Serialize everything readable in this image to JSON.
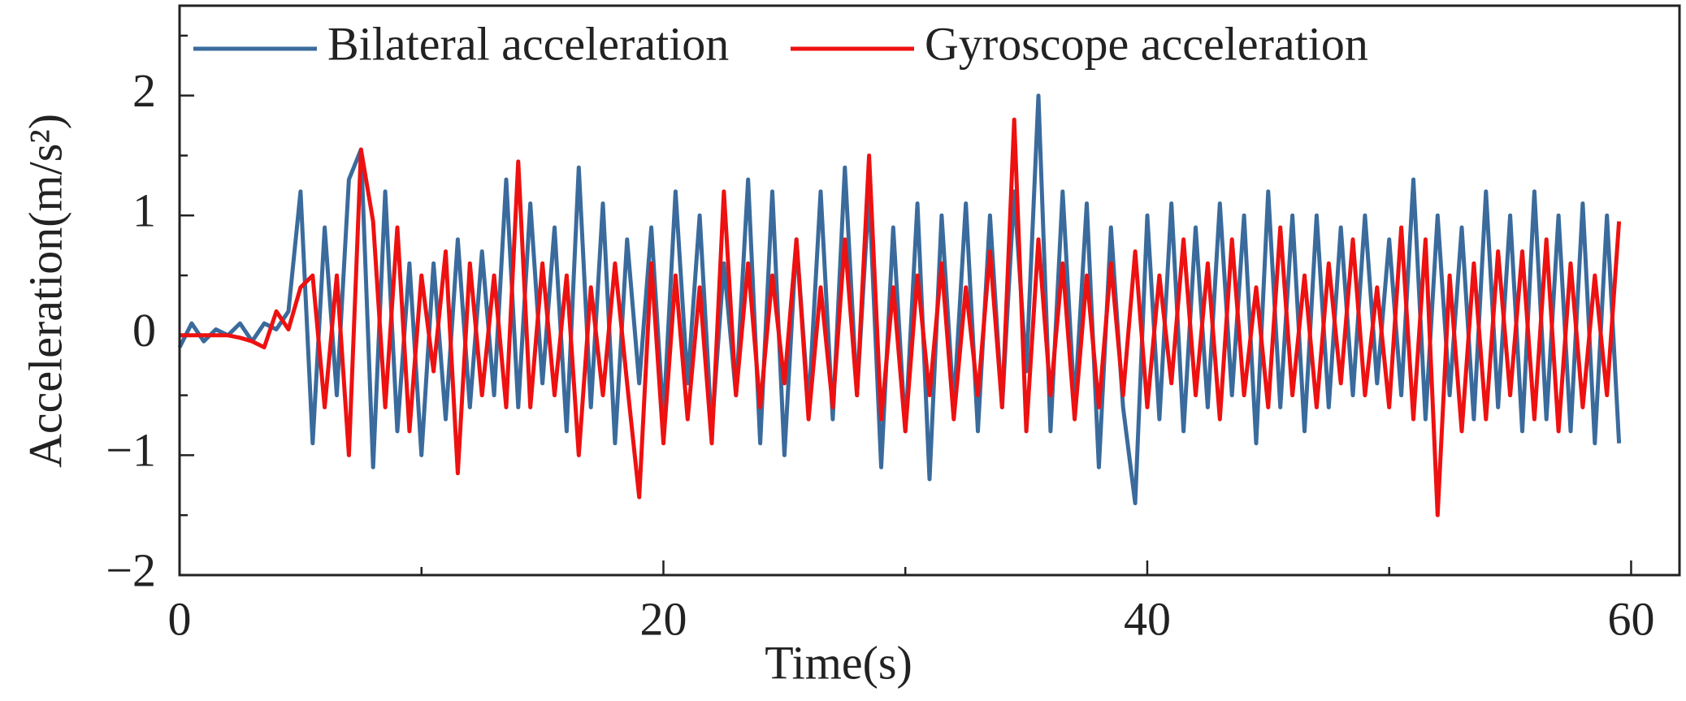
{
  "chart_data": {
    "type": "line",
    "xlabel": "Time(s)",
    "ylabel": "Acceleration(m/s²)",
    "x": [
      0,
      0.5,
      1,
      1.5,
      2,
      2.5,
      3,
      3.5,
      4,
      4.5,
      5,
      5.5,
      6,
      6.5,
      7,
      7.5,
      8,
      8.5,
      9,
      9.5,
      10,
      10.5,
      11,
      11.5,
      12,
      12.5,
      13,
      13.5,
      14,
      14.5,
      15,
      15.5,
      16,
      16.5,
      17,
      17.5,
      18,
      18.5,
      19,
      19.5,
      20,
      20.5,
      21,
      21.5,
      22,
      22.5,
      23,
      23.5,
      24,
      24.5,
      25,
      25.5,
      26,
      26.5,
      27,
      27.5,
      28,
      28.5,
      29,
      29.5,
      30,
      30.5,
      31,
      31.5,
      32,
      32.5,
      33,
      33.5,
      34,
      34.5,
      35,
      35.5,
      36,
      36.5,
      37,
      37.5,
      38,
      38.5,
      39,
      39.5,
      40,
      40.5,
      41,
      41.5,
      42,
      42.5,
      43,
      43.5,
      44,
      44.5,
      45,
      45.5,
      46,
      46.5,
      47,
      47.5,
      48,
      48.5,
      49,
      49.5,
      50,
      50.5,
      51,
      51.5,
      52,
      52.5,
      53,
      53.5,
      54,
      54.5,
      55,
      55.5,
      56,
      56.5,
      57,
      57.5,
      58,
      58.5,
      59,
      59.5
    ],
    "series": [
      {
        "name": "Bilateral acceleration",
        "color": "#3a6b9c",
        "values": [
          -0.1,
          0.1,
          -0.05,
          0.05,
          0,
          0.1,
          -0.05,
          0.1,
          0.05,
          0.2,
          1.2,
          -0.9,
          0.9,
          -0.5,
          1.3,
          1.55,
          -1.1,
          1.2,
          -0.8,
          0.6,
          -1.0,
          0.6,
          -0.7,
          0.8,
          -0.6,
          0.7,
          -0.5,
          1.3,
          -0.6,
          1.1,
          -0.4,
          0.9,
          -0.8,
          1.4,
          -0.6,
          1.1,
          -0.9,
          0.8,
          -0.4,
          0.9,
          -0.7,
          1.2,
          -0.4,
          1.0,
          -0.8,
          0.6,
          -0.5,
          1.3,
          -0.9,
          1.2,
          -1.0,
          0.8,
          -0.6,
          1.2,
          -0.7,
          1.4,
          -0.5,
          1.2,
          -1.1,
          0.9,
          -0.8,
          1.1,
          -1.2,
          1.0,
          -0.6,
          1.1,
          -0.8,
          1.0,
          -0.6,
          1.2,
          -0.3,
          2.0,
          -0.8,
          1.2,
          -0.6,
          1.1,
          -1.1,
          0.9,
          -0.6,
          -1.4,
          1.0,
          -0.7,
          1.1,
          -0.8,
          0.9,
          -0.6,
          1.1,
          -0.5,
          1.0,
          -0.9,
          1.2,
          -0.6,
          1.0,
          -0.8,
          1.0,
          -0.6,
          0.9,
          -0.5,
          1.0,
          -0.4,
          0.8,
          -0.5,
          1.3,
          -0.7,
          1.0,
          -0.5,
          0.9,
          -0.7,
          1.2,
          -0.6,
          1.0,
          -0.8,
          1.2,
          -0.7,
          1.0,
          -0.8,
          1.1,
          -0.9,
          1.0,
          -0.9
        ]
      },
      {
        "name": "Gyroscope acceleration",
        "color": "#ee1111",
        "values": [
          0,
          0,
          0,
          0,
          0,
          -0.02,
          -0.05,
          -0.1,
          0.2,
          0.05,
          0.4,
          0.5,
          -0.6,
          0.5,
          -1.0,
          1.55,
          0.95,
          -0.6,
          0.9,
          -0.8,
          0.5,
          -0.3,
          0.7,
          -1.15,
          0.6,
          -0.5,
          0.5,
          -0.6,
          1.45,
          -0.6,
          0.6,
          -0.5,
          0.5,
          -1.0,
          0.4,
          -0.5,
          0.6,
          -0.4,
          -1.35,
          0.6,
          -0.9,
          0.5,
          -0.7,
          0.4,
          -0.9,
          1.2,
          -0.5,
          0.6,
          -0.6,
          0.5,
          -0.4,
          0.8,
          -0.7,
          0.4,
          -0.6,
          0.8,
          -0.5,
          1.5,
          -0.7,
          0.4,
          -0.8,
          0.5,
          -0.5,
          0.6,
          -0.7,
          0.4,
          -0.5,
          0.7,
          -0.6,
          1.8,
          -0.8,
          0.8,
          -0.5,
          0.6,
          -0.7,
          0.5,
          -0.6,
          0.6,
          -0.5,
          0.7,
          -0.6,
          0.5,
          -0.4,
          0.8,
          -0.5,
          0.6,
          -0.7,
          0.8,
          -0.5,
          0.4,
          -0.6,
          0.9,
          -0.5,
          0.5,
          -0.6,
          0.6,
          -0.4,
          0.8,
          -0.5,
          0.4,
          -0.6,
          0.9,
          -0.7,
          0.8,
          -1.5,
          0.5,
          -0.8,
          0.6,
          -0.7,
          0.7,
          -0.5,
          0.7,
          -0.7,
          0.8,
          -0.8,
          0.6,
          -0.6,
          0.5,
          -0.5,
          0.95
        ]
      }
    ],
    "xlim": [
      0,
      62
    ],
    "ylim": [
      -2,
      2.75
    ],
    "xticks": [
      0,
      20,
      40,
      60
    ],
    "xminorticks": [
      10,
      30,
      50
    ],
    "yticks": [
      {
        "value": -2,
        "label": "−2"
      },
      {
        "value": -1,
        "label": "−1"
      },
      0,
      1,
      2
    ],
    "yminorticks": [
      -1.5,
      -0.5,
      0.5,
      1.5,
      2.5
    ],
    "legend": "top"
  }
}
